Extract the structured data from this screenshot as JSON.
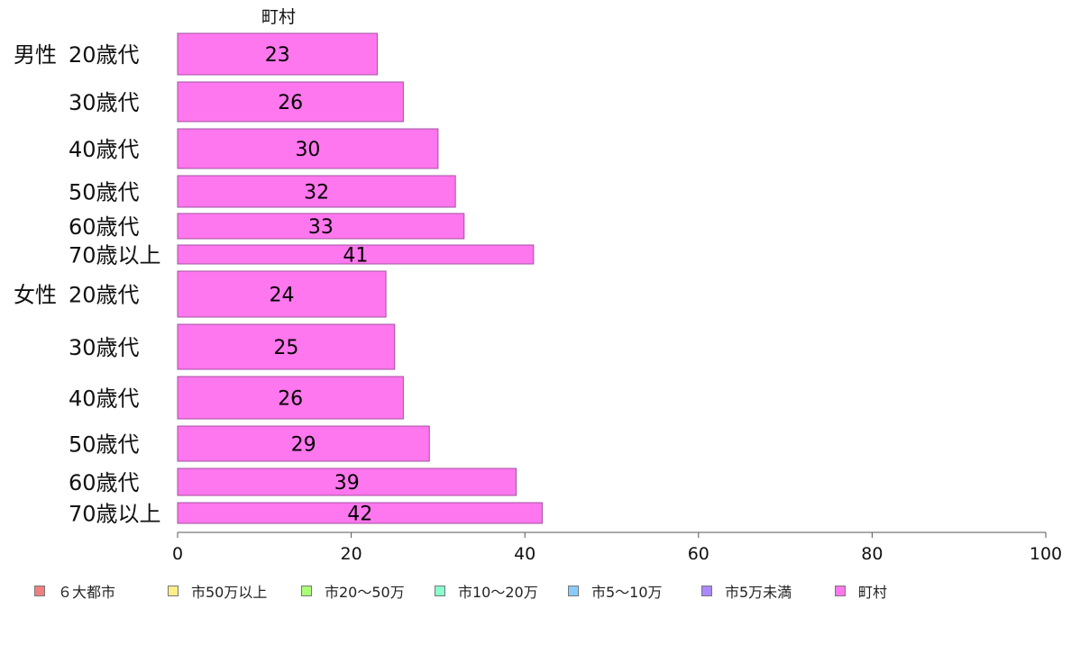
{
  "chart_data": {
    "type": "bar",
    "orientation": "horizontal",
    "title": "町村",
    "xlim": [
      0,
      100
    ],
    "xticks": [
      0,
      20,
      40,
      60,
      80,
      100
    ],
    "grid": false,
    "groups": [
      {
        "label": "男性",
        "categories": [
          "20歳代",
          "30歳代",
          "40歳代",
          "50歳代",
          "60歳代",
          "70歳以上"
        ],
        "values": [
          23,
          26,
          30,
          32,
          33,
          41
        ]
      },
      {
        "label": "女性",
        "categories": [
          "20歳代",
          "30歳代",
          "40歳代",
          "50歳代",
          "60歳代",
          "70歳以上"
        ],
        "values": [
          24,
          25,
          26,
          29,
          39,
          42
        ]
      }
    ],
    "series": [
      {
        "name": "町村",
        "color": "#ff77ee"
      }
    ],
    "legend": {
      "placement": "bottom",
      "entries": [
        {
          "label": "６大都市",
          "color": "#f08080"
        },
        {
          "label": "市50万以上",
          "color": "#ffee88"
        },
        {
          "label": "市20〜50万",
          "color": "#aaff77"
        },
        {
          "label": "市10〜20万",
          "color": "#88ffcc"
        },
        {
          "label": "市5〜10万",
          "color": "#88ccff"
        },
        {
          "label": "市5万未満",
          "color": "#aa88ff"
        },
        {
          "label": "町村",
          "color": "#ff77ee"
        }
      ]
    }
  }
}
